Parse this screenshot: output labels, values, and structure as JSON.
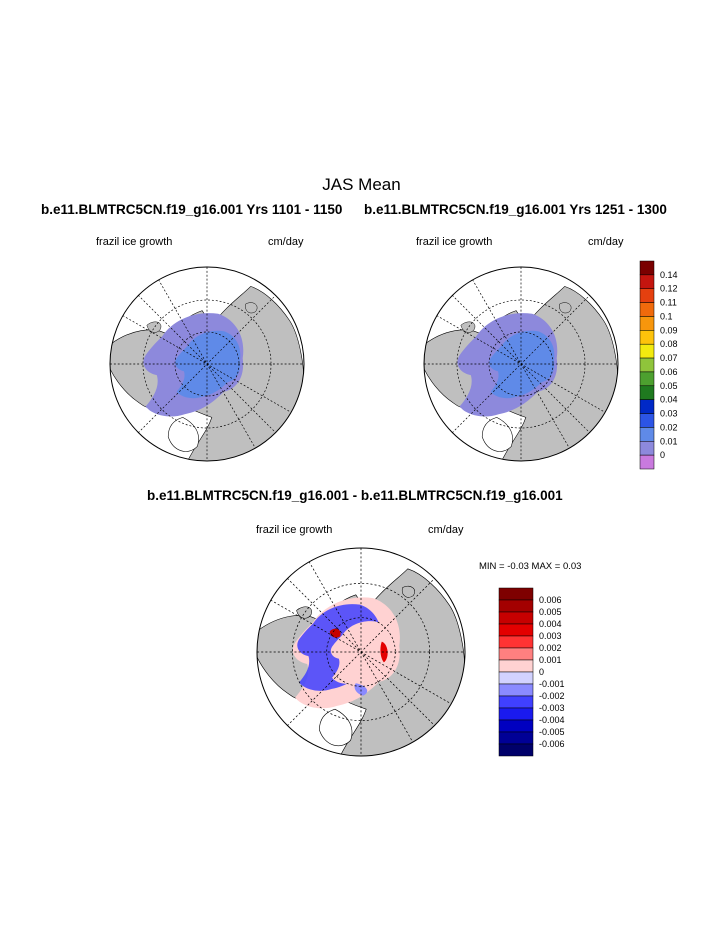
{
  "figure": {
    "title": "JAS Mean"
  },
  "chart_data": [
    {
      "type": "map",
      "projection": "north-polar-stereographic",
      "title": "b.e11.BLMTRC5CN.f19_g16.001  Yrs 1101 - 1150",
      "variable": "frazil ice growth",
      "units": "cm/day",
      "colorbar_levels": [
        "0.14",
        "0.12",
        "0.11",
        "0.1",
        "0.09",
        "0.08",
        "0.07",
        "0.06",
        "0.05",
        "0.04",
        "0.03",
        "0.02",
        "0.01",
        "0"
      ],
      "colorbar_colors": [
        "#7a0000",
        "#c4150f",
        "#e5400f",
        "#f06a0c",
        "#f7960c",
        "#fdc30b",
        "#f2ea0f",
        "#8fc43b",
        "#4da02f",
        "#1f7a1f",
        "#0029c7",
        "#2c55e6",
        "#5f8ae8",
        "#8d89dc",
        "#c97ade"
      ],
      "dominant_value_range": [
        "0.01",
        "0.02"
      ]
    },
    {
      "type": "map",
      "projection": "north-polar-stereographic",
      "title": "b.e11.BLMTRC5CN.f19_g16.001  Yrs 1251 - 1300",
      "variable": "frazil ice growth",
      "units": "cm/day",
      "colorbar": "shared with panel 1"
    },
    {
      "type": "map",
      "projection": "north-polar-stereographic",
      "title": "b.e11.BLMTRC5CN.f19_g16.001 - b.e11.BLMTRC5CN.f19_g16.001",
      "variable": "frazil ice growth",
      "units": "cm/day",
      "min_label": "MIN =",
      "min_value": "-0.03",
      "max_label": "MAX =",
      "max_value": "0.03",
      "colorbar_levels": [
        "0.006",
        "0.005",
        "0.004",
        "0.003",
        "0.002",
        "0.001",
        "0",
        "-0.001",
        "-0.002",
        "-0.003",
        "-0.004",
        "-0.005",
        "-0.006"
      ],
      "colorbar_colors": [
        "#7e0000",
        "#a30000",
        "#c70000",
        "#e30000",
        "#ff3333",
        "#ff8080",
        "#ffd2d2",
        "#d2d2ff",
        "#8a8aff",
        "#4040ff",
        "#1a1aee",
        "#0000c0",
        "#000096",
        "#00006a"
      ]
    }
  ]
}
